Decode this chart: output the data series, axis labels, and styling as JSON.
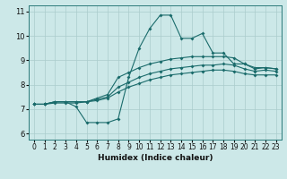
{
  "xlabel": "Humidex (Indice chaleur)",
  "xlim": [
    -0.5,
    23.5
  ],
  "ylim": [
    5.75,
    11.25
  ],
  "yticks": [
    6,
    7,
    8,
    9,
    10,
    11
  ],
  "xticks": [
    0,
    1,
    2,
    3,
    4,
    5,
    6,
    7,
    8,
    9,
    10,
    11,
    12,
    13,
    14,
    15,
    16,
    17,
    18,
    19,
    20,
    21,
    22,
    23
  ],
  "bg_color": "#cce8e8",
  "line_color": "#1a6b6b",
  "grid_color": "#aacccc",
  "line1_x": [
    0,
    1,
    2,
    3,
    4,
    5,
    6,
    7,
    8,
    9,
    10,
    11,
    12,
    13,
    14,
    15,
    16,
    17,
    18,
    19,
    20,
    21,
    22,
    23
  ],
  "line1_y": [
    7.2,
    7.2,
    7.3,
    7.3,
    7.1,
    6.45,
    6.45,
    6.45,
    6.6,
    8.3,
    9.5,
    10.3,
    10.85,
    10.85,
    9.9,
    9.9,
    10.1,
    9.3,
    9.3,
    8.85,
    8.85,
    8.65,
    8.7,
    8.65
  ],
  "line2_x": [
    0,
    1,
    2,
    3,
    4,
    5,
    6,
    7,
    8,
    9,
    10,
    11,
    12,
    13,
    14,
    15,
    16,
    17,
    18,
    19,
    20,
    21,
    22,
    23
  ],
  "line2_y": [
    7.2,
    7.2,
    7.3,
    7.3,
    7.3,
    7.3,
    7.45,
    7.6,
    8.3,
    8.5,
    8.7,
    8.85,
    8.95,
    9.05,
    9.1,
    9.15,
    9.15,
    9.15,
    9.15,
    9.1,
    8.85,
    8.7,
    8.7,
    8.65
  ],
  "line3_x": [
    0,
    1,
    2,
    3,
    4,
    5,
    6,
    7,
    8,
    9,
    10,
    11,
    12,
    13,
    14,
    15,
    16,
    17,
    18,
    19,
    20,
    21,
    22,
    23
  ],
  "line3_y": [
    7.2,
    7.2,
    7.3,
    7.3,
    7.3,
    7.3,
    7.4,
    7.5,
    7.9,
    8.1,
    8.3,
    8.45,
    8.55,
    8.65,
    8.7,
    8.75,
    8.8,
    8.8,
    8.85,
    8.8,
    8.65,
    8.55,
    8.6,
    8.55
  ],
  "line4_x": [
    0,
    1,
    2,
    3,
    4,
    5,
    6,
    7,
    8,
    9,
    10,
    11,
    12,
    13,
    14,
    15,
    16,
    17,
    18,
    19,
    20,
    21,
    22,
    23
  ],
  "line4_y": [
    7.2,
    7.2,
    7.25,
    7.25,
    7.25,
    7.3,
    7.35,
    7.45,
    7.7,
    7.9,
    8.05,
    8.2,
    8.3,
    8.4,
    8.45,
    8.5,
    8.55,
    8.6,
    8.6,
    8.55,
    8.45,
    8.4,
    8.4,
    8.4
  ]
}
